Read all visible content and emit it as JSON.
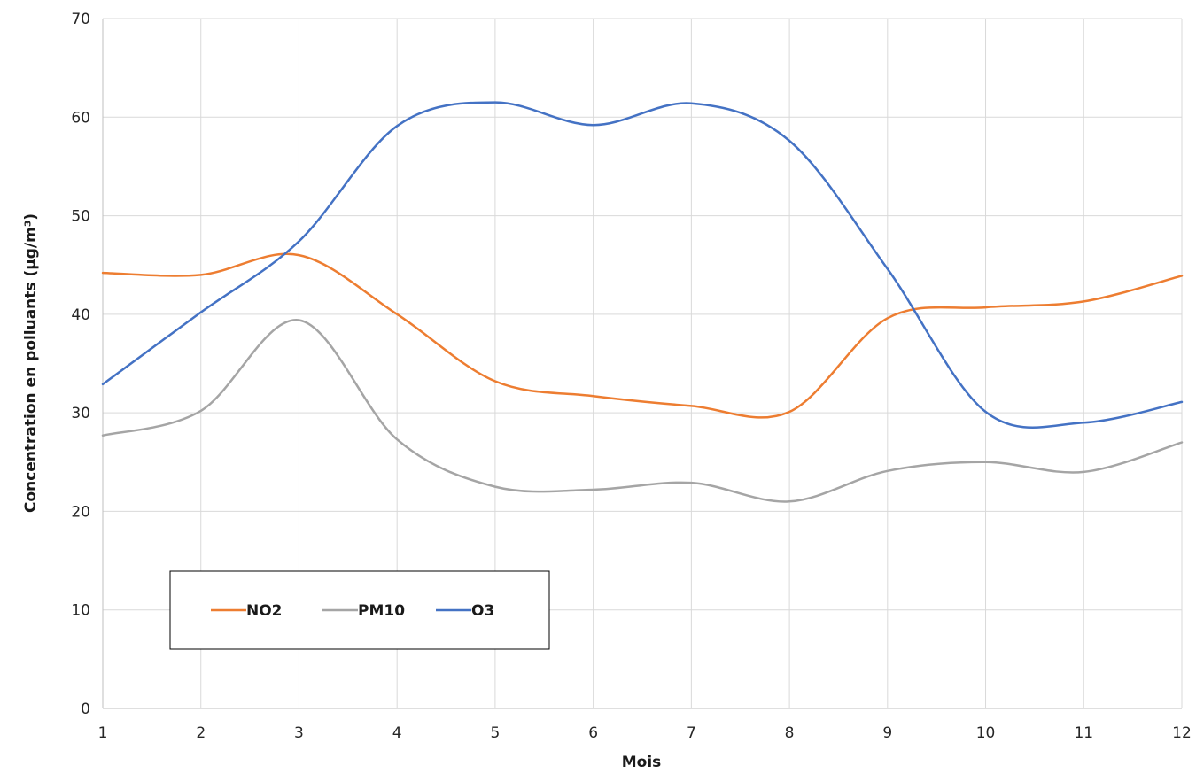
{
  "chart_data": {
    "type": "line",
    "xlabel": "Mois",
    "ylabel": "Concentration en polluants (µg/m³)",
    "x": [
      1,
      2,
      3,
      4,
      5,
      6,
      7,
      8,
      9,
      10,
      11,
      12
    ],
    "xlim": [
      1,
      12
    ],
    "ylim": [
      0,
      70
    ],
    "yticks": [
      0,
      10,
      20,
      30,
      40,
      50,
      60,
      70
    ],
    "grid": true,
    "smooth": true,
    "legend_position": "lower-left",
    "series": [
      {
        "name": "NO2",
        "color": "#ED7D31",
        "values": [
          44.2,
          44.0,
          46.0,
          40.0,
          33.2,
          31.7,
          30.7,
          30.1,
          39.6,
          40.7,
          41.3,
          43.9
        ]
      },
      {
        "name": "PM10",
        "color": "#A5A5A5",
        "values": [
          27.7,
          30.2,
          39.4,
          27.3,
          22.5,
          22.2,
          22.9,
          21.0,
          24.1,
          25.0,
          24.0,
          27.0
        ]
      },
      {
        "name": "O3",
        "color": "#4472C4",
        "values": [
          32.9,
          40.2,
          47.4,
          59.1,
          61.5,
          59.2,
          61.4,
          57.6,
          44.6,
          30.1,
          29.0,
          31.1
        ]
      }
    ]
  }
}
